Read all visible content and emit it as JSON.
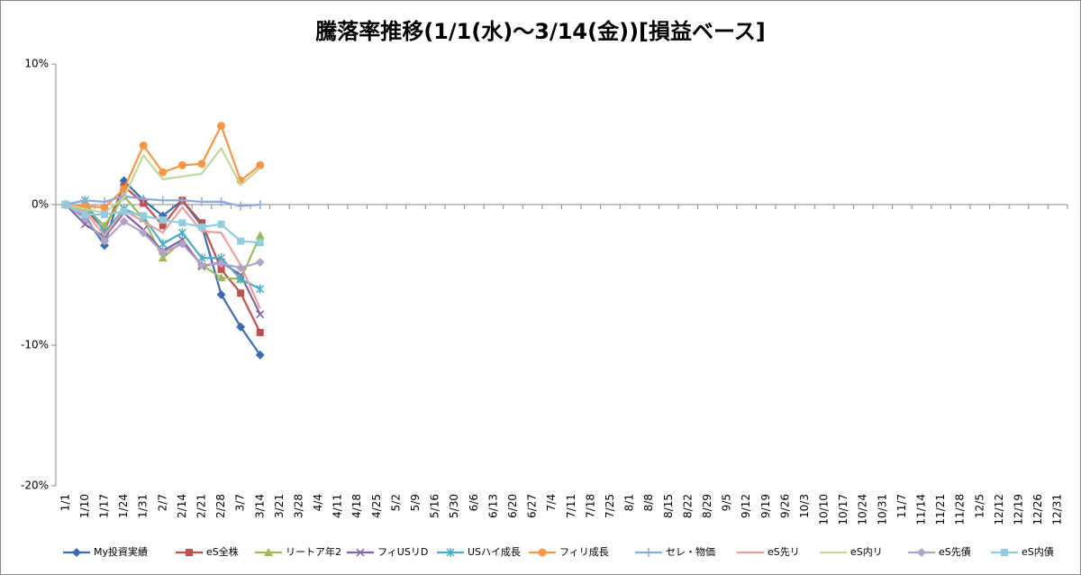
{
  "chart_data": {
    "type": "line",
    "title": "騰落率推移(1/1(水)～3/14(金))[損益ベース]",
    "categories": [
      "1/1",
      "1/10",
      "1/17",
      "1/24",
      "1/31",
      "2/7",
      "2/14",
      "2/21",
      "2/28",
      "3/7",
      "3/14",
      "3/21",
      "3/28",
      "4/4",
      "4/11",
      "4/18",
      "4/25",
      "5/2",
      "5/9",
      "5/16",
      "5/30",
      "6/6",
      "6/13",
      "6/20",
      "6/27",
      "7/4",
      "7/11",
      "7/18",
      "7/25",
      "8/1",
      "8/8",
      "8/15",
      "8/22",
      "8/29",
      "9/5",
      "9/12",
      "9/19",
      "9/26",
      "10/3",
      "10/10",
      "10/17",
      "10/24",
      "10/31",
      "11/7",
      "11/14",
      "11/21",
      "11/28",
      "12/5",
      "12/12",
      "12/19",
      "12/26",
      "12/31"
    ],
    "ylim": [
      -20,
      10
    ],
    "yticks": [
      {
        "value": -20,
        "label": "-20%"
      },
      {
        "value": -10,
        "label": "-10%"
      },
      {
        "value": 0,
        "label": "0%"
      },
      {
        "value": 10,
        "label": "10%"
      }
    ],
    "legend": "bottom",
    "series": [
      {
        "name": "My投資実績",
        "color": "#3b6cb0",
        "marker": "diamond",
        "values": [
          0,
          -0.8,
          -2.9,
          1.7,
          0.3,
          -0.8,
          0.3,
          -1.5,
          -6.4,
          -8.7,
          -10.7,
          null,
          null,
          null,
          null,
          null,
          null,
          null,
          null,
          null,
          null,
          null,
          null,
          null,
          null,
          null,
          null,
          null,
          null,
          null,
          null,
          null,
          null,
          null,
          null,
          null,
          null,
          null,
          null,
          null,
          null,
          null,
          null,
          null,
          null,
          null,
          null,
          null,
          null,
          null,
          null,
          null
        ]
      },
      {
        "name": "eS全株",
        "color": "#c0504d",
        "marker": "square",
        "values": [
          0,
          -0.3,
          -1.8,
          1.3,
          0.1,
          -1.5,
          0.3,
          -1.3,
          -4.6,
          -6.3,
          -9.1,
          null,
          null,
          null,
          null,
          null,
          null,
          null,
          null,
          null,
          null,
          null,
          null,
          null,
          null,
          null,
          null,
          null,
          null,
          null,
          null,
          null,
          null,
          null,
          null,
          null,
          null,
          null,
          null,
          null,
          null,
          null,
          null,
          null,
          null,
          null,
          null,
          null,
          null,
          null,
          null,
          null
        ]
      },
      {
        "name": "リートア年2",
        "color": "#9bbb59",
        "marker": "triangle",
        "values": [
          0,
          -0.2,
          -1.5,
          0.6,
          -1.0,
          -3.8,
          -2.6,
          -4.3,
          -5.2,
          -5.3,
          -2.2,
          null,
          null,
          null,
          null,
          null,
          null,
          null,
          null,
          null,
          null,
          null,
          null,
          null,
          null,
          null,
          null,
          null,
          null,
          null,
          null,
          null,
          null,
          null,
          null,
          null,
          null,
          null,
          null,
          null,
          null,
          null,
          null,
          null,
          null,
          null,
          null,
          null,
          null,
          null,
          null,
          null
        ]
      },
      {
        "name": "フィUSリD",
        "color": "#8064a2",
        "marker": "x",
        "values": [
          0,
          -1.4,
          -2.3,
          -0.6,
          -1.8,
          -3.3,
          -2.5,
          -4.4,
          -4.1,
          -5.0,
          -7.8,
          null,
          null,
          null,
          null,
          null,
          null,
          null,
          null,
          null,
          null,
          null,
          null,
          null,
          null,
          null,
          null,
          null,
          null,
          null,
          null,
          null,
          null,
          null,
          null,
          null,
          null,
          null,
          null,
          null,
          null,
          null,
          null,
          null,
          null,
          null,
          null,
          null,
          null,
          null,
          null,
          null
        ]
      },
      {
        "name": "USハイ成長",
        "color": "#4bacc6",
        "marker": "star",
        "values": [
          0,
          0.3,
          -2.0,
          -0.3,
          -0.9,
          -2.8,
          -2.0,
          -3.8,
          -3.8,
          -5.3,
          -6.0,
          null,
          null,
          null,
          null,
          null,
          null,
          null,
          null,
          null,
          null,
          null,
          null,
          null,
          null,
          null,
          null,
          null,
          null,
          null,
          null,
          null,
          null,
          null,
          null,
          null,
          null,
          null,
          null,
          null,
          null,
          null,
          null,
          null,
          null,
          null,
          null,
          null,
          null,
          null,
          null,
          null
        ]
      },
      {
        "name": "フィリ成長",
        "color": "#f79646",
        "marker": "circle",
        "values": [
          0,
          -0.1,
          -0.2,
          1.1,
          4.2,
          2.3,
          2.8,
          2.9,
          5.6,
          1.7,
          2.8,
          null,
          null,
          null,
          null,
          null,
          null,
          null,
          null,
          null,
          null,
          null,
          null,
          null,
          null,
          null,
          null,
          null,
          null,
          null,
          null,
          null,
          null,
          null,
          null,
          null,
          null,
          null,
          null,
          null,
          null,
          null,
          null,
          null,
          null,
          null,
          null,
          null,
          null,
          null,
          null,
          null
        ]
      },
      {
        "name": "セレ・物価",
        "color": "#8ea9db",
        "marker": "plus",
        "values": [
          0,
          0.3,
          0.2,
          0.6,
          0.4,
          0.3,
          0.3,
          0.2,
          0.2,
          -0.1,
          0.0,
          null,
          null,
          null,
          null,
          null,
          null,
          null,
          null,
          null,
          null,
          null,
          null,
          null,
          null,
          null,
          null,
          null,
          null,
          null,
          null,
          null,
          null,
          null,
          null,
          null,
          null,
          null,
          null,
          null,
          null,
          null,
          null,
          null,
          null,
          null,
          null,
          null,
          null,
          null,
          null,
          null
        ]
      },
      {
        "name": "eS先リ",
        "color": "#e6a09e",
        "marker": "none",
        "values": [
          0,
          -0.5,
          -2.2,
          -0.4,
          -1.2,
          -2.0,
          -0.2,
          -1.9,
          -2.0,
          -4.3,
          -7.4,
          null,
          null,
          null,
          null,
          null,
          null,
          null,
          null,
          null,
          null,
          null,
          null,
          null,
          null,
          null,
          null,
          null,
          null,
          null,
          null,
          null,
          null,
          null,
          null,
          null,
          null,
          null,
          null,
          null,
          null,
          null,
          null,
          null,
          null,
          null,
          null,
          null,
          null,
          null,
          null,
          null
        ]
      },
      {
        "name": "eS内リ",
        "color": "#c3d69b",
        "marker": "none",
        "values": [
          0,
          -0.3,
          -0.6,
          0.5,
          3.5,
          1.8,
          2.0,
          2.2,
          4.0,
          1.4,
          2.6,
          null,
          null,
          null,
          null,
          null,
          null,
          null,
          null,
          null,
          null,
          null,
          null,
          null,
          null,
          null,
          null,
          null,
          null,
          null,
          null,
          null,
          null,
          null,
          null,
          null,
          null,
          null,
          null,
          null,
          null,
          null,
          null,
          null,
          null,
          null,
          null,
          null,
          null,
          null,
          null,
          null
        ]
      },
      {
        "name": "eS先債",
        "color": "#b3a2c7",
        "marker": "diamond",
        "values": [
          0,
          -1.0,
          -2.6,
          -1.2,
          -2.0,
          -3.4,
          -2.8,
          -4.3,
          -4.2,
          -4.5,
          -4.1,
          null,
          null,
          null,
          null,
          null,
          null,
          null,
          null,
          null,
          null,
          null,
          null,
          null,
          null,
          null,
          null,
          null,
          null,
          null,
          null,
          null,
          null,
          null,
          null,
          null,
          null,
          null,
          null,
          null,
          null,
          null,
          null,
          null,
          null,
          null,
          null,
          null,
          null,
          null,
          null,
          null
        ]
      },
      {
        "name": "eS内債",
        "color": "#93cddd",
        "marker": "square",
        "values": [
          0,
          -0.7,
          -0.7,
          -0.5,
          -0.8,
          -1.1,
          -1.3,
          -1.6,
          -1.4,
          -2.6,
          -2.7,
          null,
          null,
          null,
          null,
          null,
          null,
          null,
          null,
          null,
          null,
          null,
          null,
          null,
          null,
          null,
          null,
          null,
          null,
          null,
          null,
          null,
          null,
          null,
          null,
          null,
          null,
          null,
          null,
          null,
          null,
          null,
          null,
          null,
          null,
          null,
          null,
          null,
          null,
          null,
          null,
          null
        ]
      }
    ]
  }
}
